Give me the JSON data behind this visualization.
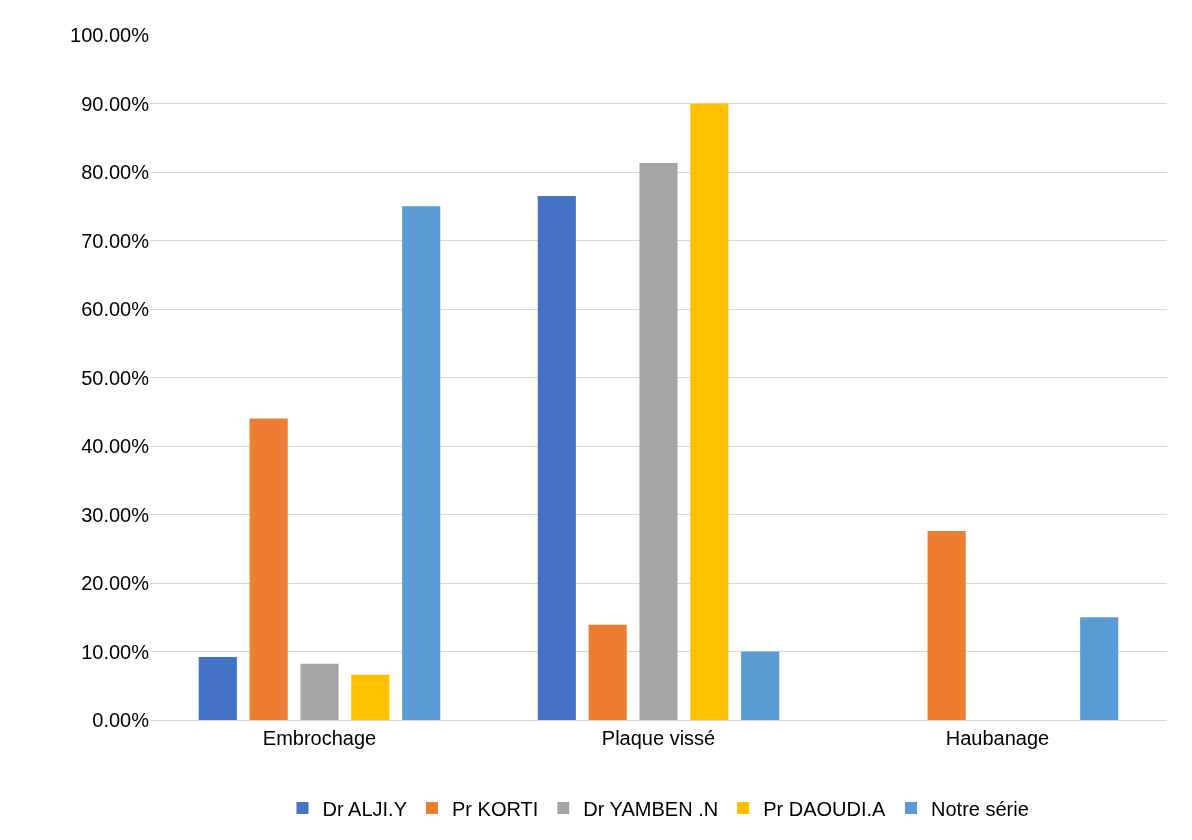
{
  "chart_data": {
    "type": "bar",
    "categories": [
      "Embrochage",
      "Plaque vissé",
      "Haubanage"
    ],
    "series": [
      {
        "name": "Dr ALJI.Y",
        "color": "#4472c4",
        "values": [
          9.2,
          76.5,
          0
        ]
      },
      {
        "name": "Pr KORTI",
        "color": "#ed7d31",
        "values": [
          44,
          13.9,
          27.6
        ]
      },
      {
        "name": "Dr YAMBEN .N",
        "color": "#a5a5a5",
        "values": [
          8.2,
          81.3,
          0
        ]
      },
      {
        "name": "Pr DAOUDI.A",
        "color": "#ffc000",
        "values": [
          6.6,
          90,
          0
        ]
      },
      {
        "name": "Notre série",
        "color": "#5b9bd5",
        "values": [
          75,
          10,
          15
        ]
      }
    ],
    "ylim": [
      0,
      100
    ],
    "yticks": [
      {
        "value": 0,
        "label": "0.00%"
      },
      {
        "value": 10,
        "label": "10.00%"
      },
      {
        "value": 20,
        "label": "20.00%"
      },
      {
        "value": 30,
        "label": "30.00%"
      },
      {
        "value": 40,
        "label": "40.00%"
      },
      {
        "value": 50,
        "label": "50.00%"
      },
      {
        "value": 60,
        "label": "60.00%"
      },
      {
        "value": 70,
        "label": "70.00%"
      },
      {
        "value": 80,
        "label": "80.00%"
      },
      {
        "value": 90,
        "label": "90.00%"
      },
      {
        "value": 100,
        "label": "100.00%"
      }
    ],
    "grid": "y",
    "legend": "bottom"
  }
}
